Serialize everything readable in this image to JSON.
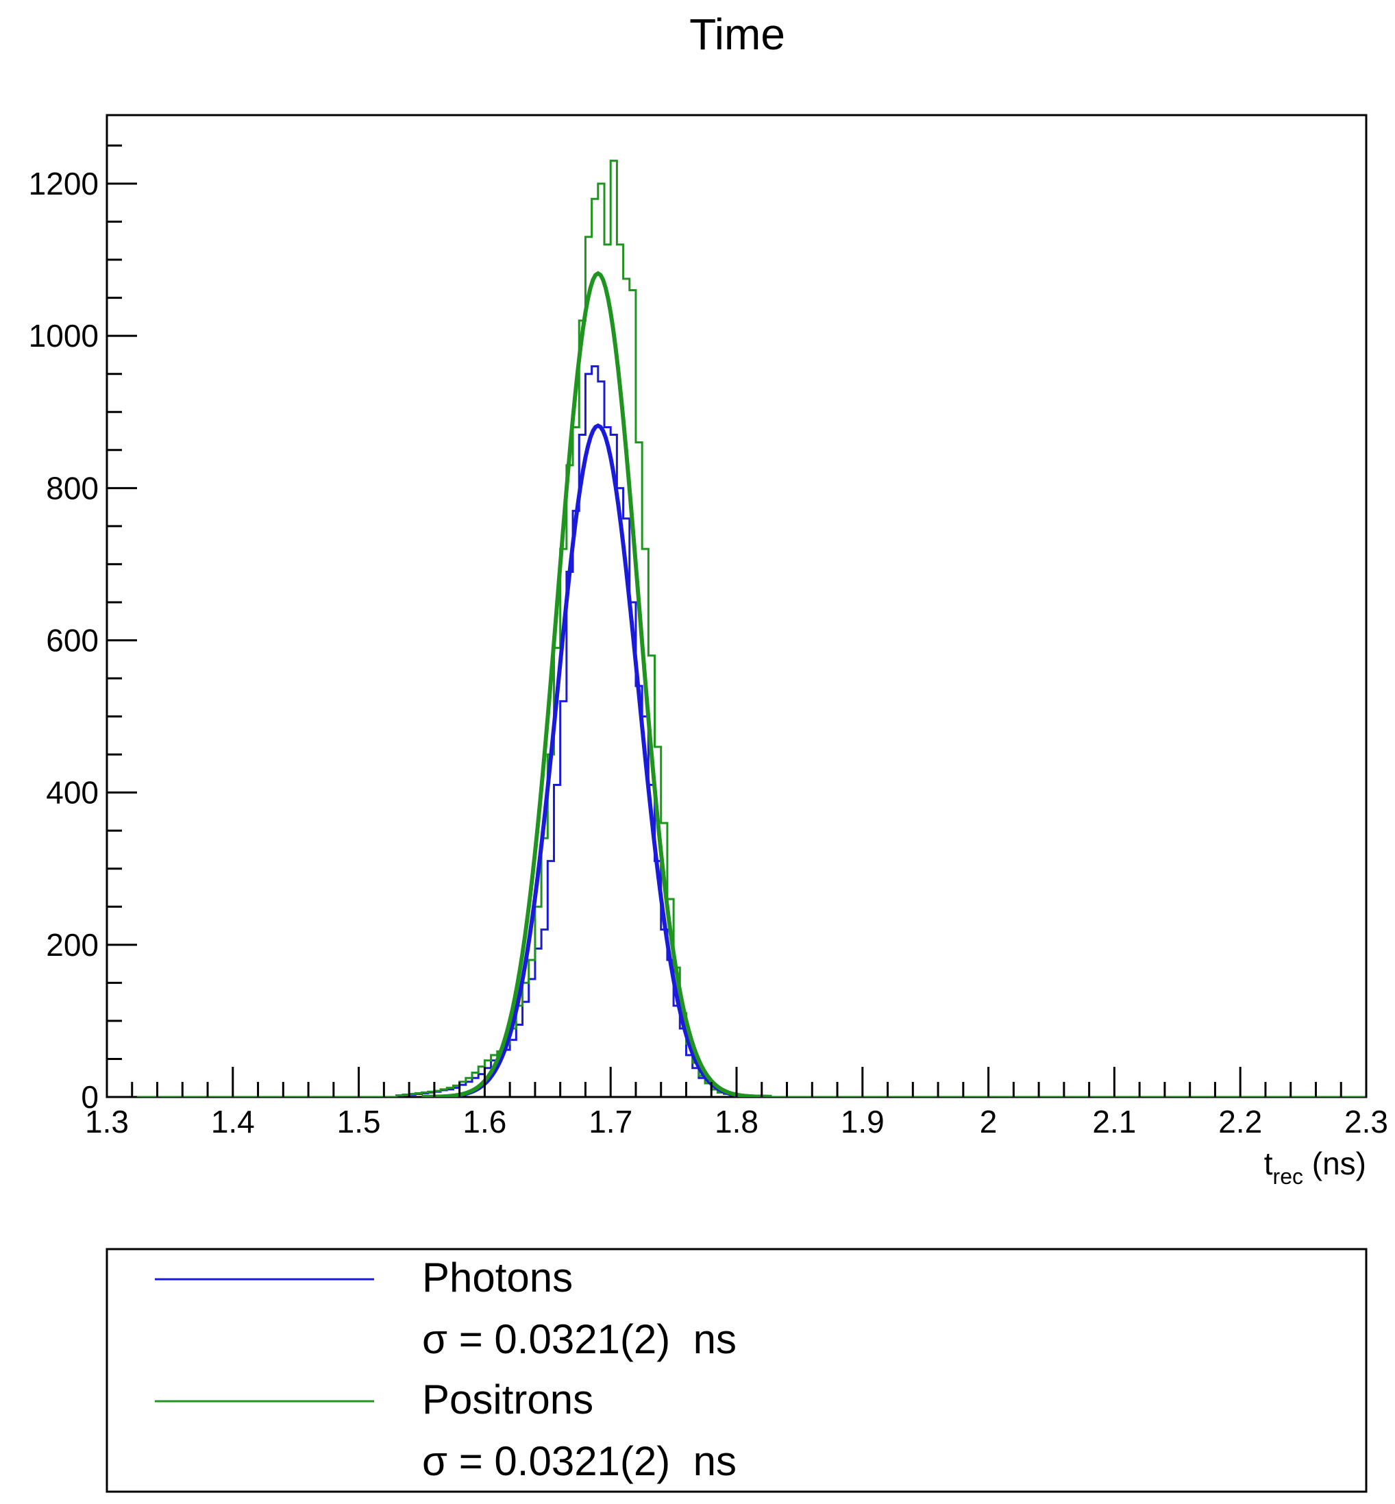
{
  "chart_data": {
    "type": "line",
    "title": "Time",
    "xlabel": {
      "main": "t",
      "sub": "rec",
      "unit": " (ns)"
    },
    "ylabel": "",
    "xlim": [
      1.3,
      2.3
    ],
    "ylim": [
      0,
      1290
    ],
    "grid": false,
    "x_ticks": [
      "1.3",
      "1.4",
      "1.5",
      "1.6",
      "1.7",
      "1.8",
      "1.9",
      "2",
      "2.1",
      "2.2",
      "2.3"
    ],
    "y_ticks": [
      "0",
      "200",
      "400",
      "600",
      "800",
      "1000",
      "1200"
    ],
    "legend_position": "bottom",
    "bin_width": 0.005,
    "series": [
      {
        "name": "Photons",
        "color": "#1a1adb",
        "histogram": {
          "x": [
            1.53,
            1.535,
            1.54,
            1.545,
            1.55,
            1.555,
            1.56,
            1.565,
            1.57,
            1.575,
            1.58,
            1.585,
            1.59,
            1.595,
            1.6,
            1.605,
            1.61,
            1.615,
            1.62,
            1.625,
            1.63,
            1.635,
            1.64,
            1.645,
            1.65,
            1.655,
            1.66,
            1.665,
            1.67,
            1.675,
            1.68,
            1.685,
            1.69,
            1.695,
            1.7,
            1.705,
            1.71,
            1.715,
            1.72,
            1.725,
            1.73,
            1.735,
            1.74,
            1.745,
            1.75,
            1.755,
            1.76,
            1.765,
            1.77,
            1.775,
            1.78,
            1.785,
            1.79,
            1.795,
            1.8,
            1.805,
            1.81
          ],
          "counts": [
            2,
            3,
            3,
            4,
            5,
            6,
            7,
            9,
            10,
            12,
            16,
            20,
            25,
            30,
            38,
            48,
            55,
            62,
            75,
            95,
            125,
            155,
            195,
            220,
            310,
            410,
            520,
            690,
            770,
            870,
            950,
            960,
            940,
            880,
            870,
            800,
            760,
            650,
            540,
            500,
            410,
            310,
            220,
            180,
            120,
            90,
            55,
            38,
            25,
            18,
            10,
            6,
            4,
            3,
            2,
            1,
            1
          ]
        },
        "fit": {
          "label": "σ = 0.0321(2)  ns",
          "mean": 1.69,
          "sigma": 0.0321,
          "amplitude": 882
        }
      },
      {
        "name": "Positrons",
        "color": "#1f941f",
        "histogram": {
          "x": [
            1.53,
            1.535,
            1.54,
            1.545,
            1.55,
            1.555,
            1.56,
            1.565,
            1.57,
            1.575,
            1.58,
            1.585,
            1.59,
            1.595,
            1.6,
            1.605,
            1.61,
            1.615,
            1.62,
            1.625,
            1.63,
            1.635,
            1.64,
            1.645,
            1.65,
            1.655,
            1.66,
            1.665,
            1.67,
            1.675,
            1.68,
            1.685,
            1.69,
            1.695,
            1.7,
            1.705,
            1.71,
            1.715,
            1.72,
            1.725,
            1.73,
            1.735,
            1.74,
            1.745,
            1.75,
            1.755,
            1.76,
            1.765,
            1.77,
            1.775,
            1.78,
            1.785,
            1.79,
            1.795,
            1.8,
            1.805,
            1.81
          ],
          "counts": [
            2,
            3,
            4,
            5,
            6,
            7,
            8,
            10,
            12,
            15,
            20,
            25,
            32,
            40,
            48,
            55,
            60,
            70,
            90,
            120,
            150,
            180,
            250,
            340,
            450,
            590,
            720,
            830,
            880,
            1020,
            1130,
            1180,
            1200,
            1120,
            1230,
            1120,
            1075,
            1060,
            860,
            720,
            580,
            460,
            360,
            260,
            170,
            110,
            70,
            45,
            28,
            18,
            10,
            6,
            4,
            3,
            2,
            1,
            1
          ]
        },
        "fit": {
          "label": "σ = 0.0321(2)  ns",
          "mean": 1.69,
          "sigma": 0.0321,
          "amplitude": 1082
        }
      }
    ]
  }
}
